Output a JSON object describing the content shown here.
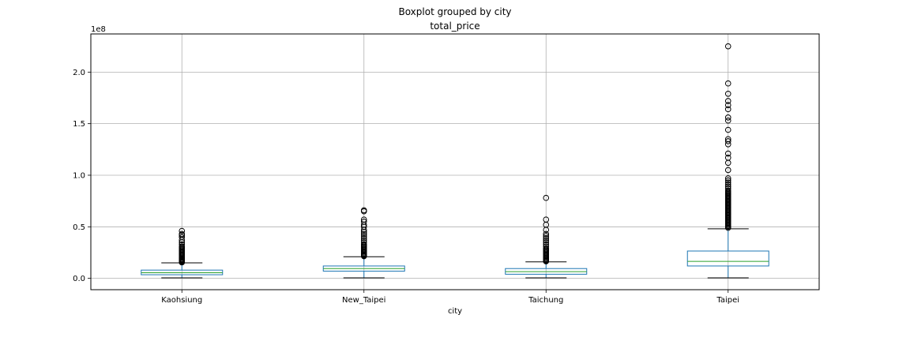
{
  "chart_data": {
    "type": "boxplot",
    "suptitle": "Boxplot grouped by city",
    "title": "total_price",
    "xlabel": "city",
    "ylabel": "",
    "y_scale_label": "1e8",
    "ylim": [
      -0.11,
      2.37
    ],
    "y_unit_multiplier": 100000000,
    "yticks": [
      0.0,
      0.5,
      1.0,
      1.5,
      2.0
    ],
    "ytick_labels": [
      "0.0",
      "0.5",
      "1.0",
      "1.5",
      "2.0"
    ],
    "grid": true,
    "box_color": "#1f77b4",
    "median_color": "#2ca02c",
    "categories": [
      "Kaohsiung",
      "New_Taipei",
      "Taichung",
      "Taipei"
    ],
    "boxes": [
      {
        "label": "Kaohsiung",
        "whisker_low": 0.005,
        "q1": 0.035,
        "median": 0.055,
        "q3": 0.08,
        "whisker_high": 0.15,
        "outliers": [
          0.155,
          0.16,
          0.165,
          0.17,
          0.175,
          0.18,
          0.185,
          0.19,
          0.2,
          0.21,
          0.22,
          0.23,
          0.24,
          0.25,
          0.26,
          0.27,
          0.28,
          0.29,
          0.3,
          0.31,
          0.33,
          0.35,
          0.37,
          0.4,
          0.42,
          0.43,
          0.46
        ]
      },
      {
        "label": "New_Taipei",
        "whisker_low": 0.005,
        "q1": 0.07,
        "median": 0.095,
        "q3": 0.12,
        "whisker_high": 0.21,
        "outliers": [
          0.215,
          0.22,
          0.225,
          0.23,
          0.24,
          0.25,
          0.26,
          0.27,
          0.28,
          0.29,
          0.3,
          0.31,
          0.32,
          0.33,
          0.35,
          0.37,
          0.39,
          0.41,
          0.43,
          0.45,
          0.47,
          0.5,
          0.52,
          0.55,
          0.57,
          0.65,
          0.66
        ]
      },
      {
        "label": "Taichung",
        "whisker_low": 0.005,
        "q1": 0.04,
        "median": 0.065,
        "q3": 0.095,
        "whisker_high": 0.16,
        "outliers": [
          0.165,
          0.17,
          0.175,
          0.18,
          0.19,
          0.2,
          0.21,
          0.22,
          0.23,
          0.24,
          0.25,
          0.26,
          0.27,
          0.28,
          0.29,
          0.31,
          0.33,
          0.35,
          0.37,
          0.39,
          0.41,
          0.43,
          0.47,
          0.52,
          0.57,
          0.78
        ]
      },
      {
        "label": "Taipei",
        "whisker_low": 0.005,
        "q1": 0.12,
        "median": 0.165,
        "q3": 0.265,
        "whisker_high": 0.48,
        "outliers": [
          0.49,
          0.5,
          0.51,
          0.52,
          0.53,
          0.54,
          0.55,
          0.56,
          0.57,
          0.58,
          0.59,
          0.6,
          0.61,
          0.62,
          0.63,
          0.64,
          0.65,
          0.66,
          0.67,
          0.68,
          0.69,
          0.7,
          0.71,
          0.72,
          0.73,
          0.74,
          0.75,
          0.76,
          0.77,
          0.78,
          0.79,
          0.8,
          0.81,
          0.82,
          0.83,
          0.84,
          0.85,
          0.87,
          0.89,
          0.91,
          0.93,
          0.95,
          0.97,
          1.05,
          1.12,
          1.17,
          1.21,
          1.3,
          1.33,
          1.35,
          1.44,
          1.53,
          1.56,
          1.64,
          1.68,
          1.72,
          1.79,
          1.89,
          2.25
        ]
      }
    ]
  }
}
